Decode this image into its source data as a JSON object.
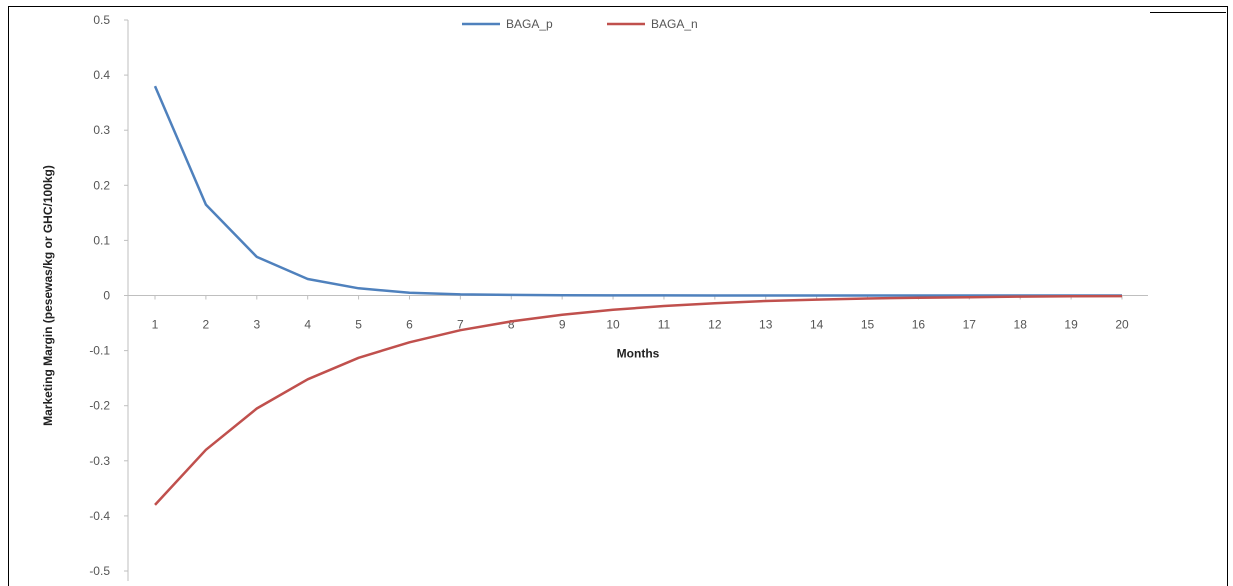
{
  "chart_data": {
    "type": "line",
    "title": "",
    "xlabel": "Months",
    "ylabel": "Marketing Margin (pesewas/kg or GHC/100kg)",
    "x": [
      1,
      2,
      3,
      4,
      5,
      6,
      7,
      8,
      9,
      10,
      11,
      12,
      13,
      14,
      15,
      16,
      17,
      18,
      19,
      20
    ],
    "ylim": [
      -0.5,
      0.5
    ],
    "yticks": [
      0.5,
      0.4,
      0.3,
      0.2,
      0.1,
      0,
      -0.1,
      -0.2,
      -0.3,
      -0.4,
      -0.5
    ],
    "legend_position": "top-center",
    "grid": false,
    "series": [
      {
        "name": "BAGA_p",
        "color": "#4f81bd",
        "values": [
          0.38,
          0.165,
          0.07,
          0.03,
          0.013,
          0.005,
          0.002,
          0.001,
          0.0005,
          0.0002,
          0.0001,
          0,
          0,
          0,
          0,
          0,
          0,
          0,
          0,
          0
        ]
      },
      {
        "name": "BAGA_n",
        "color": "#c0504d",
        "values": [
          -0.38,
          -0.28,
          -0.205,
          -0.152,
          -0.113,
          -0.085,
          -0.063,
          -0.047,
          -0.035,
          -0.026,
          -0.019,
          -0.014,
          -0.01,
          -0.0075,
          -0.0055,
          -0.004,
          -0.003,
          -0.002,
          -0.0015,
          -0.001
        ]
      }
    ]
  }
}
